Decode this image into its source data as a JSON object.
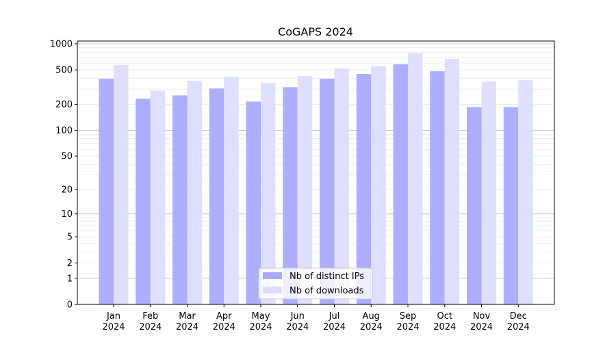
{
  "chart_data": {
    "type": "bar",
    "title": "CoGAPS 2024",
    "xlabel": "",
    "ylabel": "",
    "yscale": "log10(y+1)",
    "ylim": [
      0,
      1050
    ],
    "yticks": [
      0,
      1,
      2,
      5,
      10,
      20,
      50,
      100,
      200,
      500,
      1000
    ],
    "ytick_labels": [
      "0",
      "1",
      "2",
      "5",
      "10",
      "20",
      "50",
      "100",
      "200",
      "500",
      "1000"
    ],
    "categories": [
      "Jan\n2024",
      "Feb\n2024",
      "Mar\n2024",
      "Apr\n2024",
      "May\n2024",
      "Jun\n2024",
      "Jul\n2024",
      "Aug\n2024",
      "Sep\n2024",
      "Oct\n2024",
      "Nov\n2024",
      "Dec\n2024"
    ],
    "series": [
      {
        "name": "Nb of distinct IPs",
        "color": "#aaaaff",
        "values": [
          394,
          232,
          254,
          305,
          215,
          316,
          394,
          448,
          579,
          482,
          186,
          186
        ]
      },
      {
        "name": "Nb of downloads",
        "color": "#ddddff",
        "values": [
          568,
          288,
          373,
          416,
          353,
          424,
          518,
          548,
          776,
          670,
          366,
          380
        ]
      }
    ],
    "grid": true,
    "legend_position": "lower-center"
  }
}
